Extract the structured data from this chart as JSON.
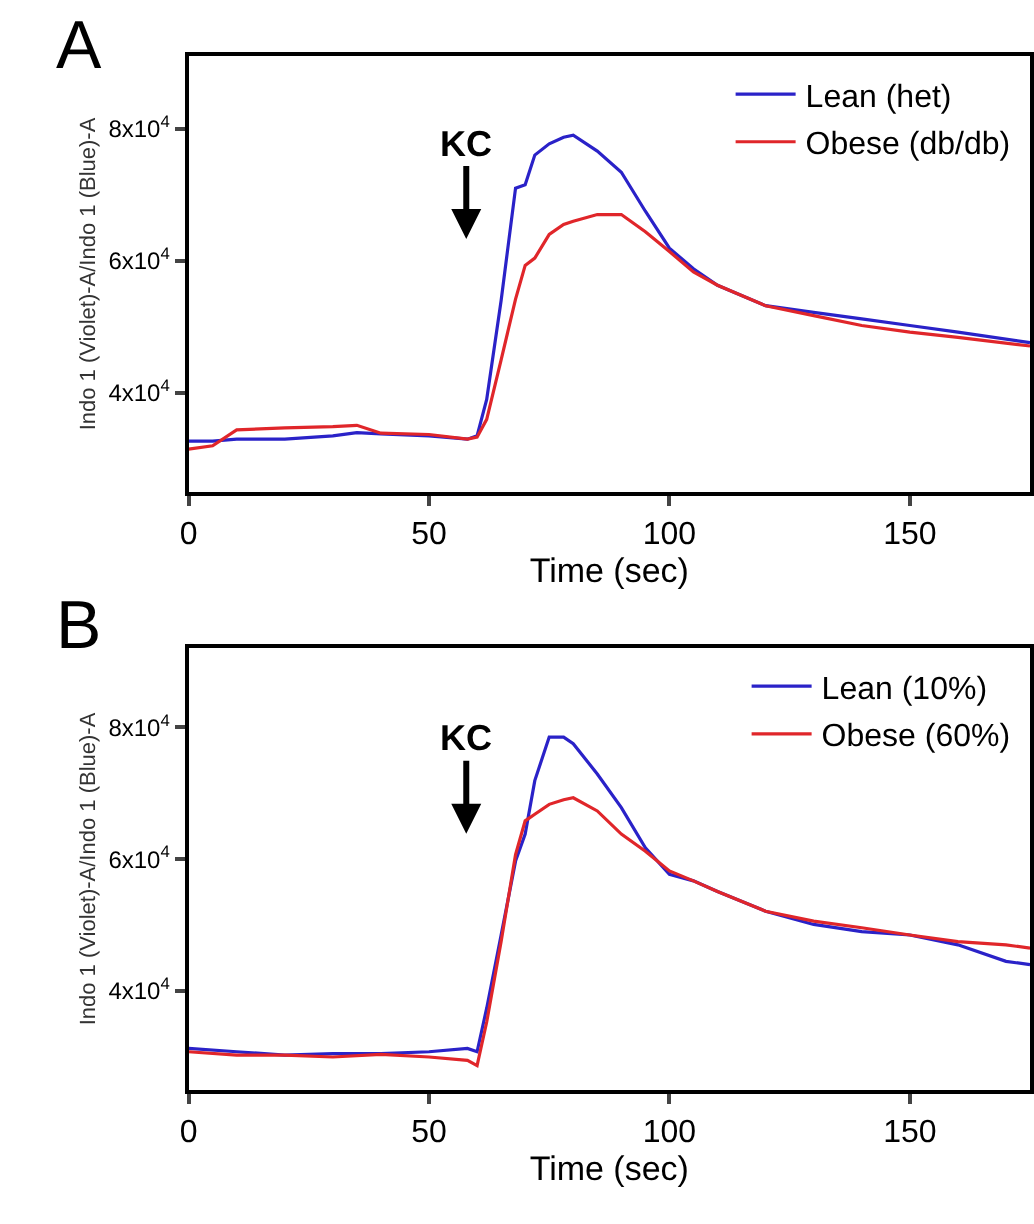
{
  "chart_data": [
    {
      "type": "line",
      "title": "A",
      "xlabel": "Time (sec)",
      "ylabel": "Indo 1 (Violet)-A/Indo 1 (Blue)-A",
      "x": [
        0,
        5,
        10,
        20,
        30,
        35,
        40,
        50,
        58,
        60,
        62,
        65,
        68,
        70,
        72,
        75,
        78,
        80,
        85,
        90,
        95,
        100,
        105,
        110,
        120,
        130,
        140,
        150,
        160,
        175
      ],
      "series": [
        {
          "name": "Lean (het)",
          "color": "#2a22c8",
          "values": [
            32700,
            32700,
            33000,
            33000,
            33500,
            34000,
            33800,
            33500,
            33000,
            33500,
            39000,
            54000,
            71000,
            71500,
            76000,
            77700,
            78700,
            79000,
            76600,
            73400,
            67500,
            61900,
            58800,
            56300,
            53200,
            52200,
            51200,
            50200,
            49200,
            47600
          ]
        },
        {
          "name": "Obese (db/db)",
          "color": "#e0262a",
          "values": [
            31500,
            32000,
            34400,
            34700,
            34900,
            35100,
            33900,
            33700,
            33000,
            33300,
            36000,
            45000,
            54200,
            59300,
            60400,
            64000,
            65500,
            66000,
            67000,
            67000,
            64400,
            61400,
            58300,
            56300,
            53200,
            51700,
            50200,
            49200,
            48400,
            47100
          ]
        }
      ],
      "annotations": [
        "KC"
      ],
      "xlim": [
        0,
        175
      ],
      "xticks": [
        0,
        50,
        100,
        150
      ],
      "ylim": [
        25000,
        91000
      ],
      "yticks": [
        {
          "value": 40000,
          "label": "4x10$^{4}$"
        },
        {
          "value": 60000,
          "label": "6x10$^{4}$"
        },
        {
          "value": 80000,
          "label": "8x10$^{4}$"
        }
      ],
      "legend": "top right",
      "marker": "none",
      "line_style": "solid"
    },
    {
      "type": "line",
      "title": "B",
      "xlabel": "Time (sec)",
      "ylabel": "Indo 1 (Violet)-A/Indo 1 (Blue)-A",
      "x": [
        0,
        10,
        20,
        30,
        40,
        50,
        58,
        60,
        62,
        65,
        68,
        70,
        72,
        75,
        78,
        80,
        85,
        90,
        95,
        100,
        105,
        110,
        120,
        130,
        140,
        150,
        160,
        170,
        175
      ],
      "series": [
        {
          "name": "Lean (10%)",
          "color": "#2a22c8",
          "values": [
            31300,
            30800,
            30300,
            30500,
            30500,
            30800,
            31300,
            30800,
            37400,
            48500,
            59700,
            63800,
            71900,
            78500,
            78500,
            77500,
            72900,
            67800,
            61700,
            57700,
            56700,
            55100,
            52100,
            50100,
            49000,
            48500,
            47000,
            44500,
            44000
          ]
        },
        {
          "name": "Obese (60%)",
          "color": "#e0262a",
          "values": [
            30800,
            30300,
            30300,
            30000,
            30400,
            30000,
            29500,
            28700,
            35300,
            47500,
            60700,
            65800,
            66800,
            68300,
            69000,
            69300,
            67300,
            63800,
            61200,
            58200,
            56700,
            55100,
            52100,
            50600,
            49600,
            48500,
            47500,
            47000,
            46500
          ]
        }
      ],
      "annotations": [
        "KC"
      ],
      "xlim": [
        0,
        175
      ],
      "xticks": [
        0,
        50,
        100,
        150
      ],
      "ylim": [
        25000,
        92000
      ],
      "yticks": [
        {
          "value": 40000,
          "label": "4x10$^{4}$"
        },
        {
          "value": 60000,
          "label": "6x10$^{4}$"
        },
        {
          "value": 80000,
          "label": "8x10$^{4}$"
        }
      ],
      "legend": "top right",
      "marker": "none",
      "line_style": "solid"
    }
  ]
}
